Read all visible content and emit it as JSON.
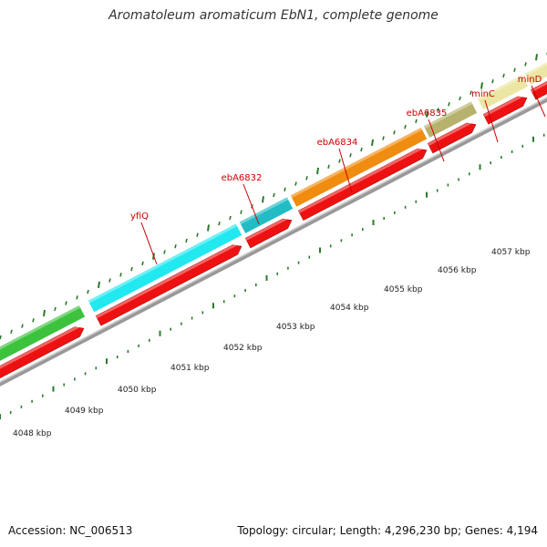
{
  "title": "Aromatoleum aromaticum EbN1, complete genome",
  "footer": {
    "accession": "Accession: NC_006513",
    "topology": "Topology: circular; Length: 4,296,230 bp; Genes: 4,194"
  },
  "genes": [
    {
      "name": "",
      "color": "#3dc23d"
    },
    {
      "name": "yfiQ",
      "color": "#22e8f0"
    },
    {
      "name": "ebA6832",
      "color": "#22bcc4"
    },
    {
      "name": "ebA6834",
      "color": "#f08c10"
    },
    {
      "name": "ebA6835",
      "color": "#b6b26e"
    },
    {
      "name": "minC",
      "color": "#ece6a4"
    },
    {
      "name": "minD",
      "color": "#ece6a4"
    }
  ],
  "cds_color": "#ee1111",
  "kbp_labels": [
    "4048 kbp",
    "4049 kbp",
    "4050 kbp",
    "4051 kbp",
    "4052 kbp",
    "4053 kbp",
    "4054 kbp",
    "4055 kbp",
    "4056 kbp",
    "4057 kbp"
  ]
}
